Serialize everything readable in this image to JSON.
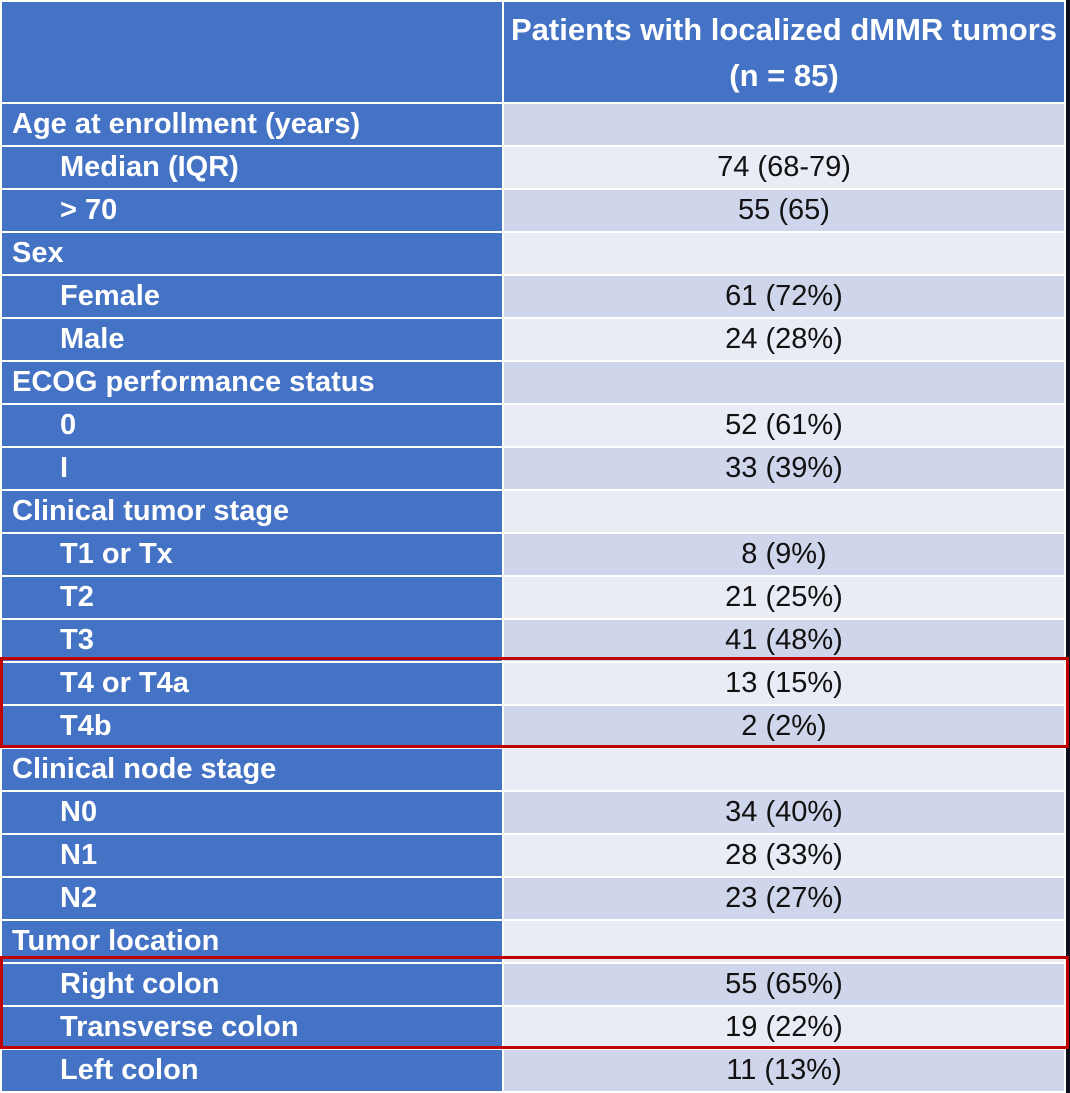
{
  "table": {
    "column_header": "Patients with localized dMMR tumors (n = 85)",
    "rows": [
      {
        "type": "category",
        "label": "Age at enrollment (years)",
        "value": ""
      },
      {
        "type": "sub",
        "label": "Median (IQR)",
        "value": "74 (68-79)"
      },
      {
        "type": "sub",
        "label": "> 70",
        "value": "55 (65)"
      },
      {
        "type": "category",
        "label": "Sex",
        "value": ""
      },
      {
        "type": "sub",
        "label": "Female",
        "value": "61 (72%)"
      },
      {
        "type": "sub",
        "label": "Male",
        "value": "24 (28%)"
      },
      {
        "type": "category",
        "label": "ECOG performance status",
        "value": ""
      },
      {
        "type": "sub",
        "label": "0",
        "value": "52 (61%)"
      },
      {
        "type": "sub",
        "label": "I",
        "value": "33 (39%)"
      },
      {
        "type": "category",
        "label": "Clinical tumor stage",
        "value": ""
      },
      {
        "type": "sub",
        "label": "T1 or Tx",
        "value": "8 (9%)"
      },
      {
        "type": "sub",
        "label": "T2",
        "value": "21 (25%)"
      },
      {
        "type": "sub",
        "label": "T3",
        "value": "41 (48%)"
      },
      {
        "type": "sub",
        "label": "T4 or T4a",
        "value": "13 (15%)"
      },
      {
        "type": "sub",
        "label": "T4b",
        "value": "2 (2%)"
      },
      {
        "type": "category",
        "label": "Clinical node stage",
        "value": ""
      },
      {
        "type": "sub",
        "label": "N0",
        "value": "34 (40%)"
      },
      {
        "type": "sub",
        "label": "N1",
        "value": "28 (33%)"
      },
      {
        "type": "sub",
        "label": "N2",
        "value": "23 (27%)"
      },
      {
        "type": "category",
        "label": "Tumor location",
        "value": ""
      },
      {
        "type": "sub",
        "label": "Right colon",
        "value": "55 (65%)"
      },
      {
        "type": "sub",
        "label": "Transverse colon",
        "value": "19 (22%)"
      },
      {
        "type": "sub",
        "label": "Left colon",
        "value": "11 (13%)"
      }
    ]
  },
  "highlights": [
    {
      "rows": [
        "T4 or T4a",
        "T4b"
      ],
      "color": "#c00000"
    },
    {
      "rows": [
        "Right colon",
        "Transverse colon"
      ],
      "color": "#c00000"
    }
  ],
  "colors": {
    "header_blue": "#4472c4",
    "band_dark": "#cfd5ea",
    "band_light": "#e9ebf5",
    "highlight": "#c00000"
  }
}
